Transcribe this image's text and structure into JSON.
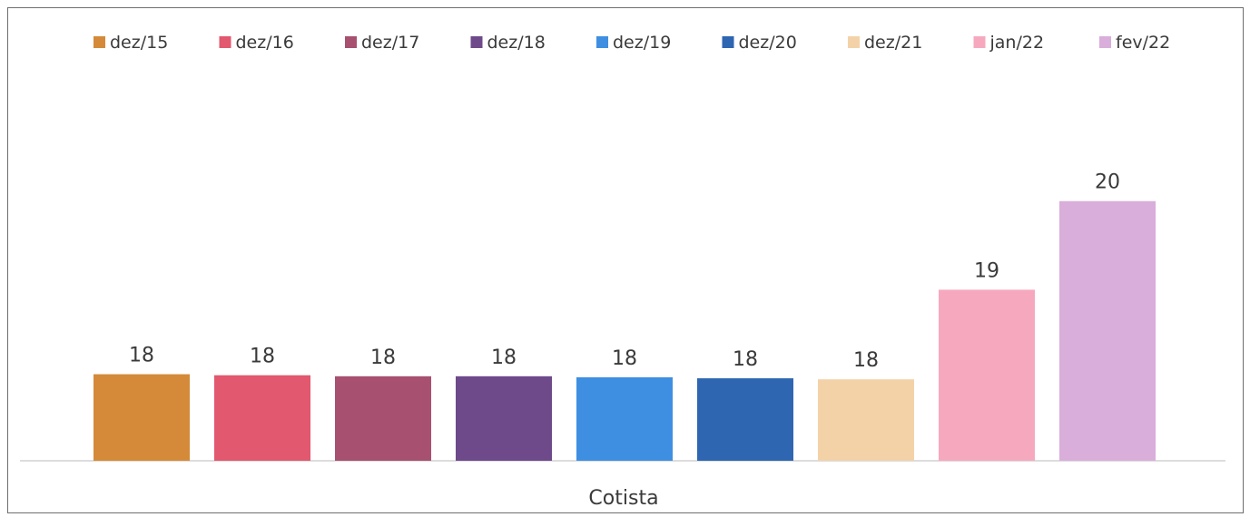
{
  "chart_data": {
    "type": "bar",
    "categories": [
      "Cotista"
    ],
    "series": [
      {
        "name": "dez/15",
        "values": [
          18
        ],
        "color": "#D48A38"
      },
      {
        "name": "dez/16",
        "values": [
          18
        ],
        "color": "#E2586E"
      },
      {
        "name": "dez/17",
        "values": [
          18
        ],
        "color": "#A7506F"
      },
      {
        "name": "dez/18",
        "values": [
          18
        ],
        "color": "#6E4A8A"
      },
      {
        "name": "dez/19",
        "values": [
          18
        ],
        "color": "#3E8FE2"
      },
      {
        "name": "dez/20",
        "values": [
          18
        ],
        "color": "#2F66B2"
      },
      {
        "name": "dez/21",
        "values": [
          18
        ],
        "color": "#F4D2A8"
      },
      {
        "name": "jan/22",
        "values": [
          19
        ],
        "color": "#F6A9BE"
      },
      {
        "name": "fev/22",
        "values": [
          20
        ],
        "color": "#D9AEDB"
      }
    ],
    "plotted_values": [
      18.35,
      18.34,
      18.33,
      18.33,
      18.32,
      18.31,
      18.3,
      19.18,
      20.05
    ],
    "data_labels": [
      "18",
      "18",
      "18",
      "18",
      "18",
      "18",
      "18",
      "19",
      "20"
    ],
    "ylim": [
      17.5,
      20.6
    ],
    "legend_position": "top",
    "grid": false,
    "title": "",
    "xlabel": "",
    "ylabel": ""
  }
}
